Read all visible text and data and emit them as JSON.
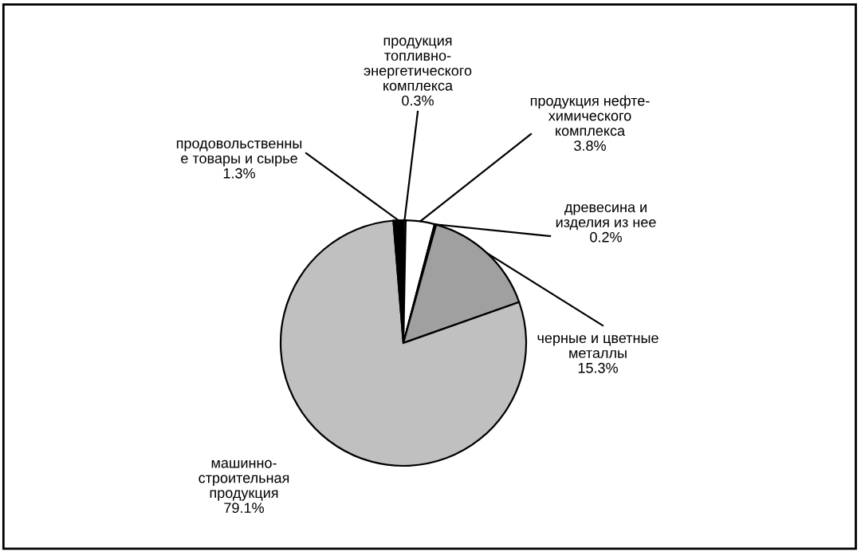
{
  "chart_data": {
    "type": "pie",
    "categories": [
      "продукция топливно-энергетического комплекса",
      "продукция нефте-химического комплекса",
      "древесина и изделия из нее",
      "черные и цветные металлы",
      "машинно-строительная продукция",
      "продовольственные товары и сырье"
    ],
    "values": [
      0.3,
      3.8,
      0.2,
      15.3,
      79.1,
      1.3
    ],
    "value_labels": [
      "0.3%",
      "3.8%",
      "0.2%",
      "15.3%",
      "79.1%",
      "1.3%"
    ],
    "colors": [
      "#404040",
      "#ffffff",
      "#e0e0e0",
      "#a0a0a0",
      "#c0c0c0",
      "#000000"
    ],
    "legend": false
  }
}
